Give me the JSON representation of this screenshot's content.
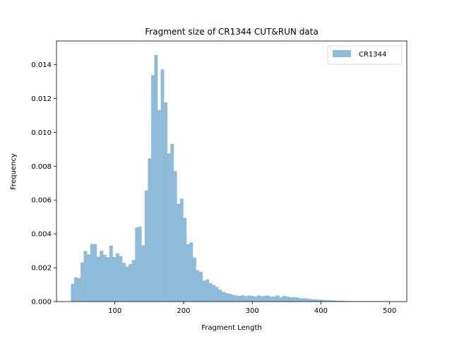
{
  "chart_data": {
    "type": "bar",
    "title": "Fragment size of CR1344 CUT&RUN data",
    "xlabel": "Fragment Length",
    "ylabel": "Frequency",
    "xlim": [
      15,
      525
    ],
    "ylim": [
      0,
      0.0154
    ],
    "xticks": [
      100,
      200,
      300,
      400,
      500
    ],
    "xtick_labels": [
      "100",
      "200",
      "300",
      "400",
      "500"
    ],
    "yticks": [
      0,
      0.002,
      0.004,
      0.006,
      0.008,
      0.01,
      0.012,
      0.014
    ],
    "ytick_labels": [
      "0.000",
      "0.002",
      "0.004",
      "0.006",
      "0.008",
      "0.010",
      "0.012",
      "0.014"
    ],
    "grid": false,
    "legend_position": "top-right",
    "bin_width": 4.67,
    "series": [
      {
        "name": "CR1344",
        "color": "#8fbad9",
        "bin_start": 36,
        "values": [
          0.00105,
          0.00143,
          0.00138,
          0.00232,
          0.00299,
          0.00279,
          0.0034,
          0.0034,
          0.00266,
          0.003,
          0.00277,
          0.00262,
          0.0033,
          0.00263,
          0.00285,
          0.00269,
          0.00229,
          0.00207,
          0.00222,
          0.00245,
          0.00438,
          0.00444,
          0.00332,
          0.00657,
          0.00846,
          0.01338,
          0.01457,
          0.01132,
          0.01372,
          0.01177,
          0.00876,
          0.00931,
          0.00771,
          0.00578,
          0.00608,
          0.00494,
          0.00339,
          0.0035,
          0.0026,
          0.00185,
          0.00175,
          0.00124,
          0.00131,
          0.00109,
          0.00098,
          0.00086,
          0.0007,
          0.00057,
          0.0005,
          0.00046,
          0.0004,
          0.00036,
          0.00034,
          0.00037,
          0.00032,
          0.00036,
          0.00034,
          0.0003,
          0.00036,
          0.00031,
          0.00034,
          0.00036,
          0.00029,
          0.00031,
          0.00036,
          0.00026,
          0.00033,
          0.00029,
          0.00025,
          0.00026,
          0.00024,
          0.00019,
          0.00019,
          0.00019,
          0.00016,
          0.00013,
          0.00013,
          0.00011,
          0.0001,
          9e-05,
          9e-05,
          7e-05,
          6e-05,
          5e-05,
          5e-05,
          4e-05,
          3e-05,
          3e-05,
          2e-05,
          2e-05,
          2e-05,
          1e-05,
          1e-05,
          1e-05,
          1e-05,
          1e-05,
          1e-05,
          1e-05,
          1e-05
        ]
      }
    ]
  }
}
